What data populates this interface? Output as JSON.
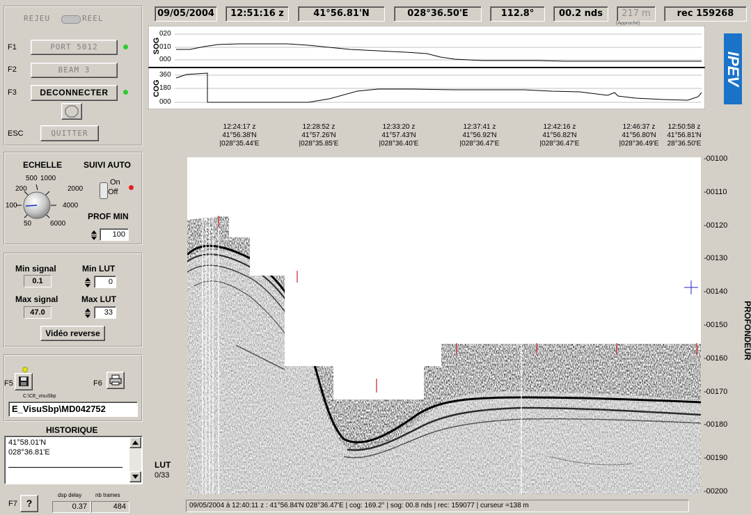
{
  "top": {
    "date": "09/05/2004",
    "time": "12:51:16 z",
    "lat": "41°56.81'N",
    "lon": "028°36.50'E",
    "heading": "112.8°",
    "speed": "00.2 nds",
    "depth": "217 m",
    "depth_note": "(Approché)",
    "record": "rec 159268"
  },
  "mode": {
    "left": "REJEU",
    "right": "REEL"
  },
  "functions": {
    "f1_key": "F1",
    "f1_label": "PORT 5012",
    "f2_key": "F2",
    "f2_label": "BEAM 3",
    "f3_key": "F3",
    "f3_label": "DECONNECTER",
    "esc_key": "ESC",
    "esc_label": "QUITTER"
  },
  "scale": {
    "echelle": "ECHELLE",
    "suivi": "SUIVI AUTO",
    "dial": [
      "50",
      "100",
      "200",
      "500",
      "1000",
      "2000",
      "4000",
      "6000"
    ],
    "on": "On",
    "off": "Off",
    "prof_min_label": "PROF MIN",
    "prof_min": "100"
  },
  "signal": {
    "min_signal_label": "Min signal",
    "min_signal": "0.1",
    "max_signal_label": "Max signal",
    "max_signal": "47.0",
    "min_lut_label": "Min LUT",
    "min_lut": "0",
    "max_lut_label": "Max LUT",
    "max_lut": "33",
    "video_reverse": "Vidéo reverse"
  },
  "file": {
    "f5_key": "F5",
    "f6_key": "F6",
    "path_small": "C:\\CE_visuSbp",
    "path": "E_VisuSbp\\MD042752"
  },
  "historique": {
    "title": "HISTORIQUE",
    "lat": "41°58.01'N",
    "lon": "028°36.81'E"
  },
  "bottom": {
    "f7_key": "F7",
    "dsp_delay_label": "dsp delay",
    "dsp_delay": "0.37",
    "nb_trames_label": "nb trames",
    "nb_trames": "484"
  },
  "lut": {
    "label": "LUT",
    "value": "0/33"
  },
  "logo": "IPEV",
  "sog": {
    "label": "SOG",
    "ticks": [
      "020",
      "010",
      "000"
    ]
  },
  "cog": {
    "label": "COG",
    "ticks": [
      "360",
      "180",
      "000"
    ]
  },
  "timeline": [
    {
      "time": "12:24:17 z",
      "lat": "41°56.38'N",
      "lon": "|028°35.44'E"
    },
    {
      "time": "12:28:52 z",
      "lat": "41°57.26'N",
      "lon": "|028°35.85'E"
    },
    {
      "time": "12:33:20 z",
      "lat": "41°57.43'N",
      "lon": "|028°36.40'E"
    },
    {
      "time": "12:37:41 z",
      "lat": "41°56.92'N",
      "lon": "|028°36.47'E"
    },
    {
      "time": "12:42:16 z",
      "lat": "41°56.82'N",
      "lon": "|028°36.47'E"
    },
    {
      "time": "12:46:37 z",
      "lat": "41°56.80'N",
      "lon": "|028°36.49'E"
    },
    {
      "time": "12:50:58 z",
      "lat": "41°56.81'N",
      "lon": "28°36.50'E"
    }
  ],
  "depth_axis": {
    "label": "PROFONDEUR",
    "ticks": [
      "-00100",
      "-00110",
      "-00120",
      "-00130",
      "-00140",
      "-00150",
      "-00160",
      "-00170",
      "-00180",
      "-00190",
      "-00200"
    ]
  },
  "status": "09/05/2004 à 12:40:11 z :  41°56.84'N  028°36.47'E  | cog: 169.2° | sog: 00.8 nds | rec: 159077 | curseur =138 m",
  "colors": {
    "led_green": "#2ecc2e",
    "led_red": "#e02020",
    "led_yellow": "#e8e020",
    "logo_blue": "#1a73c8",
    "marker_red": "#d02020"
  }
}
